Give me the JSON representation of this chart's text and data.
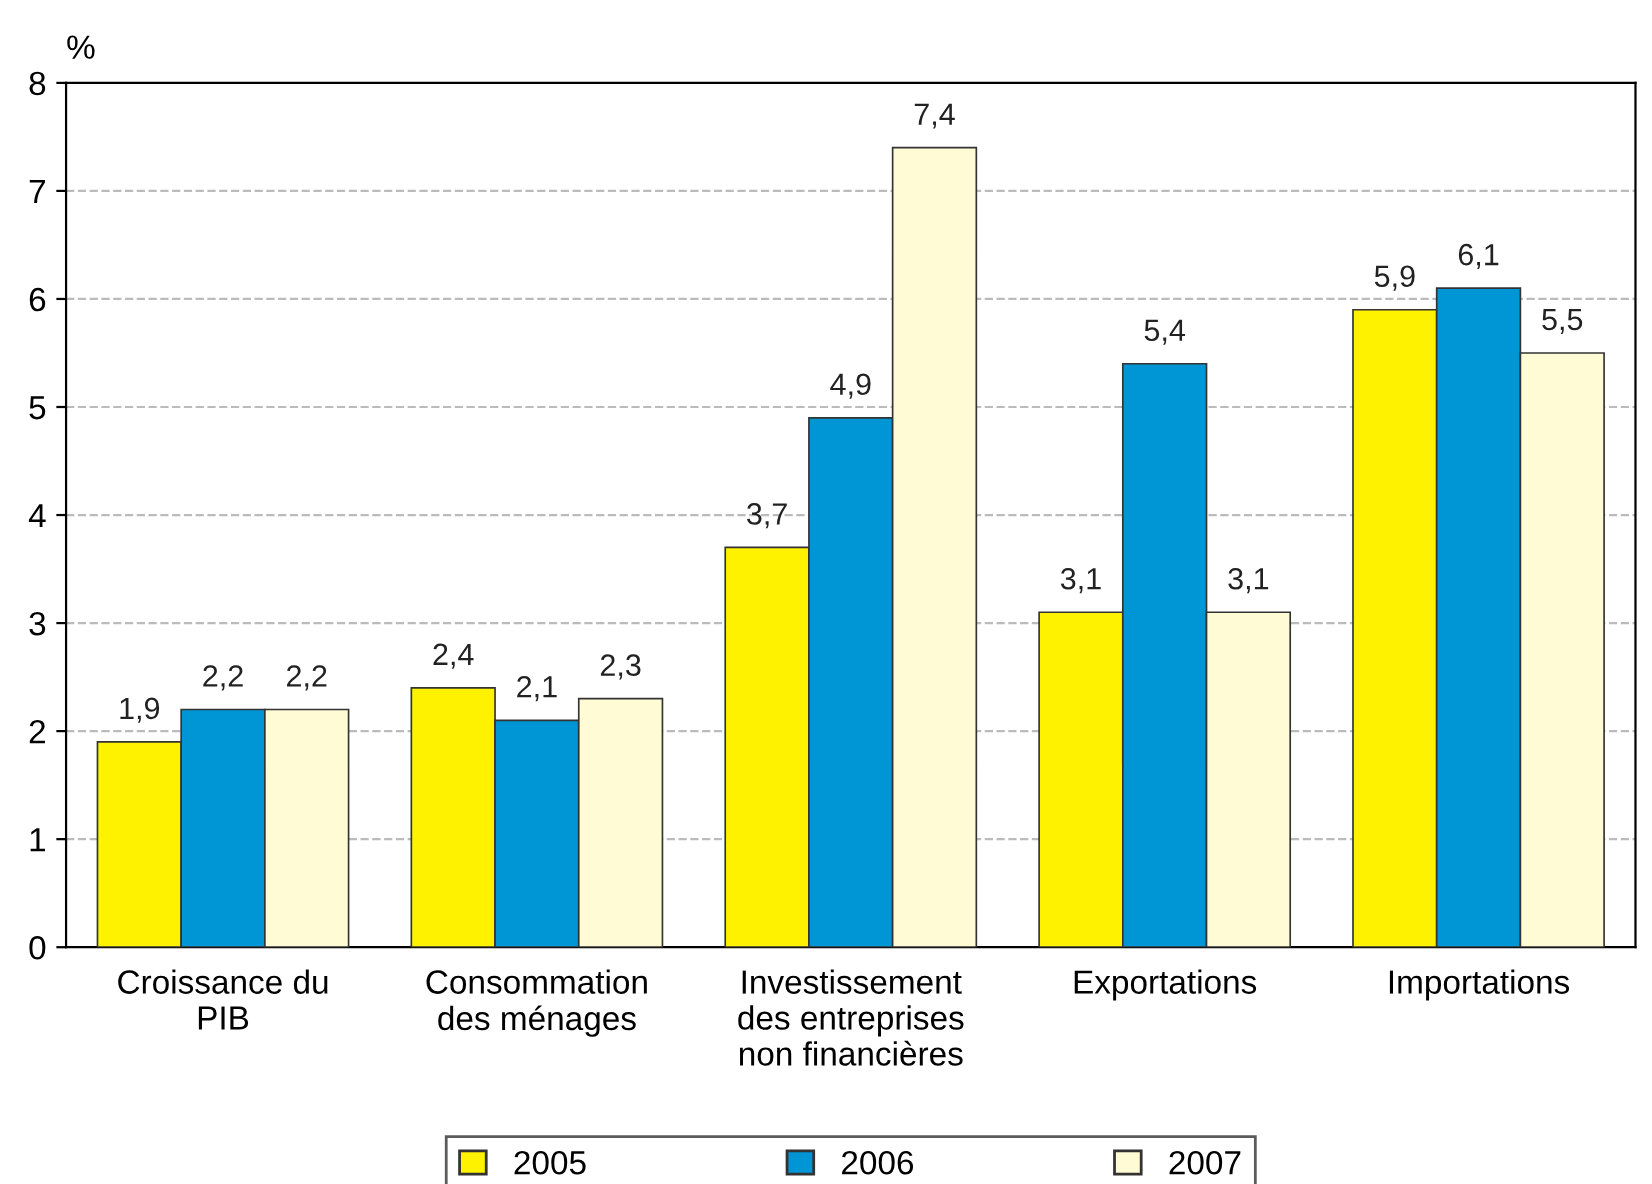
{
  "chart_data": {
    "type": "bar",
    "ylabel": "%",
    "categories": [
      "Croissance du\nPIB",
      "Consommation\ndes ménages",
      "Investissement\ndes entreprises\nnon financières",
      "Exportations",
      "Importations"
    ],
    "series": [
      {
        "name": "2005",
        "color": "#fff200",
        "values": [
          1.9,
          2.4,
          3.7,
          3.1,
          5.9
        ],
        "value_labels": [
          "1,9",
          "2,4",
          "3,7",
          "3,1",
          "5,9"
        ]
      },
      {
        "name": "2006",
        "color": "#0096d6",
        "values": [
          2.2,
          2.1,
          4.9,
          5.4,
          6.1
        ],
        "value_labels": [
          "2,2",
          "2,1",
          "4,9",
          "5,4",
          "6,1"
        ]
      },
      {
        "name": "2007",
        "color": "#fffbd4",
        "values": [
          2.2,
          2.3,
          7.4,
          3.1,
          5.5
        ],
        "value_labels": [
          "2,2",
          "2,3",
          "7,4",
          "3,1",
          "5,5"
        ]
      }
    ],
    "ylim": [
      0,
      8
    ],
    "yticks": [
      0,
      1,
      2,
      3,
      4,
      5,
      6,
      7,
      8
    ],
    "grid": "y",
    "line_style": "dashed",
    "legend": "bottom"
  }
}
